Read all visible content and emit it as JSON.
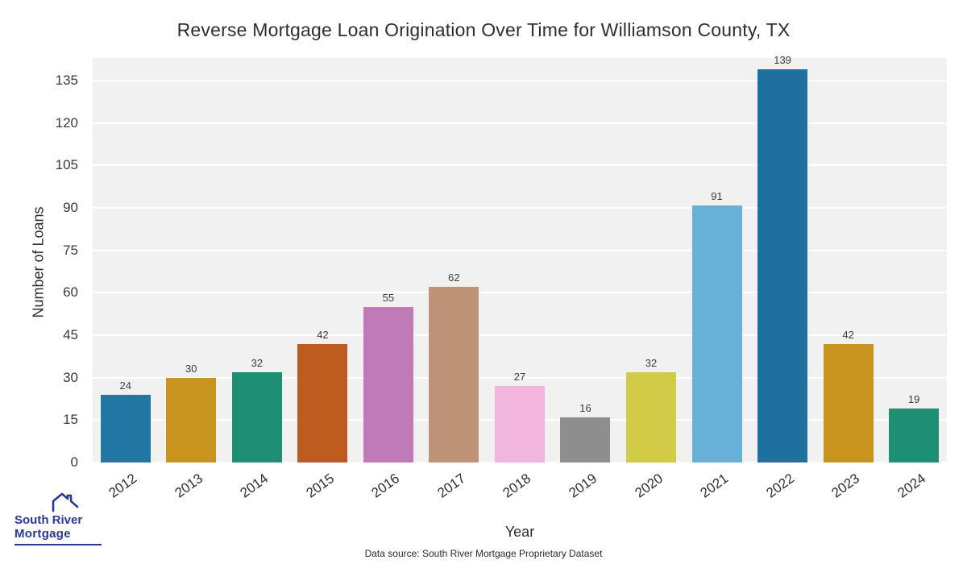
{
  "title": "Reverse Mortgage Loan Origination Over Time for Williamson County, TX",
  "footer": "Data source: South River Mortgage Proprietary Dataset",
  "logo": {
    "line1": "South River",
    "line2": "Mortgage",
    "color": "#2b3990"
  },
  "chart_data": {
    "type": "bar",
    "title": "Reverse Mortgage Loan Origination Over Time for Williamson County, TX",
    "xlabel": "Year",
    "ylabel": "Number of Loans",
    "categories": [
      "2012",
      "2013",
      "2014",
      "2015",
      "2016",
      "2017",
      "2018",
      "2019",
      "2020",
      "2021",
      "2022",
      "2023",
      "2024"
    ],
    "values": [
      24,
      30,
      32,
      42,
      55,
      62,
      27,
      16,
      32,
      91,
      139,
      42,
      19
    ],
    "bar_colors": [
      "#2276a3",
      "#c8941f",
      "#1f8f74",
      "#bd5c1e",
      "#c07ab8",
      "#bf9378",
      "#f2b5dd",
      "#8e8e8e",
      "#d0cc45",
      "#67b1d8",
      "#1f6f9f",
      "#c8941f",
      "#1e8f73"
    ],
    "yticks": [
      0,
      15,
      30,
      45,
      60,
      75,
      90,
      105,
      120,
      135
    ],
    "ylim": [
      0,
      143
    ],
    "grid": "horizontal white on light-gray panel",
    "legend": "none",
    "value_labels": true
  }
}
